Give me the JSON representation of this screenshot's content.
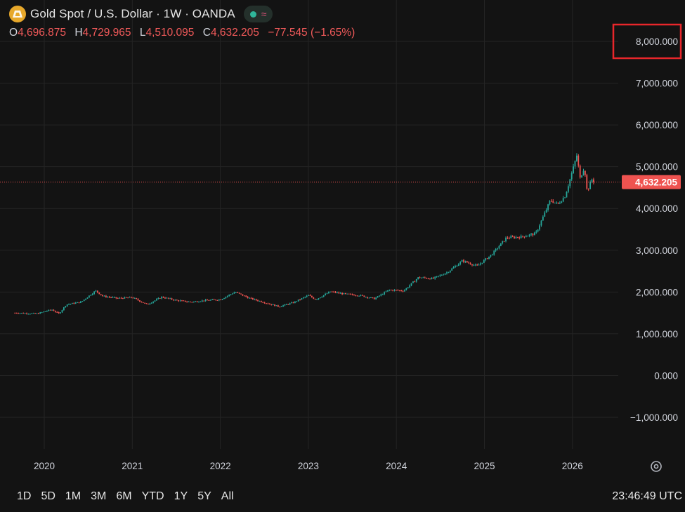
{
  "header": {
    "title": "Gold Spot / U.S. Dollar · 1W · OANDA",
    "ohlc": [
      {
        "key": "O",
        "value": "4,696.875"
      },
      {
        "key": "H",
        "value": "4,729.965"
      },
      {
        "key": "L",
        "value": "4,510.095"
      },
      {
        "key": "C",
        "value": "4,632.205"
      }
    ],
    "change": "−77.545 (−1.65%)"
  },
  "colors": {
    "background": "#131313",
    "up": "#26a69a",
    "down": "#ef5350",
    "grid": "#242424",
    "highlight_box": "#e8262b"
  },
  "chart_data": {
    "type": "candlestick",
    "x_ticks": [
      "2020",
      "2021",
      "2022",
      "2023",
      "2024",
      "2025",
      "2026"
    ],
    "y_ticks": [
      "8,000.000",
      "7,000.000",
      "6,000.000",
      "5,000.000",
      "4,000.000",
      "3,000.000",
      "2,000.000",
      "1,000.000",
      "0.000",
      "−1,000.000"
    ],
    "ylim": [
      -1000,
      8000
    ],
    "last_price_label": "4,632.205",
    "last_price": 4632.205,
    "highlighted_tick": "8,000.000",
    "series": [
      {
        "points": [
          [
            "2019-09",
            1500
          ],
          [
            "2019-12",
            1480
          ],
          [
            "2020-02",
            1580
          ],
          [
            "2020-03",
            1480
          ],
          [
            "2020-04",
            1700
          ],
          [
            "2020-06",
            1760
          ],
          [
            "2020-08",
            2030
          ],
          [
            "2020-09",
            1900
          ],
          [
            "2020-11",
            1850
          ],
          [
            "2021-01",
            1870
          ],
          [
            "2021-03",
            1700
          ],
          [
            "2021-05",
            1880
          ],
          [
            "2021-07",
            1800
          ],
          [
            "2021-09",
            1760
          ],
          [
            "2021-11",
            1800
          ],
          [
            "2022-01",
            1820
          ],
          [
            "2022-03",
            2000
          ],
          [
            "2022-05",
            1850
          ],
          [
            "2022-07",
            1750
          ],
          [
            "2022-09",
            1650
          ],
          [
            "2022-11",
            1750
          ],
          [
            "2023-01",
            1920
          ],
          [
            "2023-02",
            1820
          ],
          [
            "2023-04",
            2010
          ],
          [
            "2023-06",
            1950
          ],
          [
            "2023-08",
            1920
          ],
          [
            "2023-10",
            1840
          ],
          [
            "2023-12",
            2050
          ],
          [
            "2024-02",
            2030
          ],
          [
            "2024-04",
            2350
          ],
          [
            "2024-06",
            2320
          ],
          [
            "2024-08",
            2480
          ],
          [
            "2024-10",
            2750
          ],
          [
            "2024-12",
            2620
          ],
          [
            "2025-02",
            2900
          ],
          [
            "2025-04",
            3300
          ],
          [
            "2025-06",
            3320
          ],
          [
            "2025-08",
            3400
          ],
          [
            "2025-09",
            3800
          ],
          [
            "2025-10",
            4200
          ],
          [
            "2025-11",
            4100
          ],
          [
            "2025-12",
            4300
          ],
          [
            "2026-01",
            4900
          ],
          [
            "2026-01-20",
            5300
          ],
          [
            "2026-02",
            4700
          ],
          [
            "2026-02-20",
            5000
          ],
          [
            "2026-03",
            4400
          ],
          [
            "2026-03-20",
            4700
          ],
          [
            "2026-04",
            4632
          ]
        ]
      }
    ]
  },
  "bottom": {
    "ranges": [
      "1D",
      "5D",
      "1M",
      "3M",
      "6M",
      "YTD",
      "1Y",
      "5Y",
      "All"
    ],
    "clock": "23:46:49 UTC"
  }
}
